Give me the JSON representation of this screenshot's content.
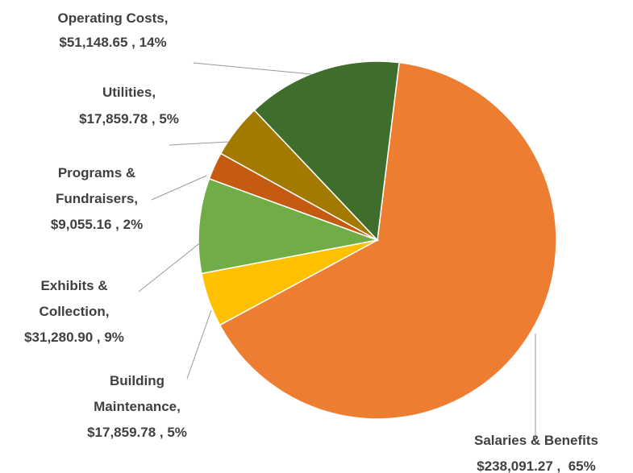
{
  "chart_data": {
    "type": "pie",
    "title": "",
    "legend": "none",
    "slices": [
      {
        "category": "Salaries & Benefits",
        "value": 238091.27,
        "percent": 65,
        "color": "#ed7d31",
        "label_lines": [
          "Salaries & Benefits",
          "$238,091.27 ,  65%"
        ]
      },
      {
        "category": "Building Maintenance",
        "value": 17859.78,
        "percent": 5,
        "color": "#ffc000",
        "label_lines": [
          "Building",
          "Maintenance,",
          "$17,859.78 , 5%"
        ]
      },
      {
        "category": "Exhibits & Collection",
        "value": 31280.9,
        "percent": 9,
        "color": "#70ad47",
        "label_lines": [
          "Exhibits &",
          "Collection,",
          "$31,280.90 , 9%"
        ]
      },
      {
        "category": "Programs & Fundraisers",
        "value": 9055.16,
        "percent": 2,
        "color": "#c55a11",
        "label_lines": [
          "Programs &",
          "Fundraisers,",
          "$9,055.16 , 2%"
        ]
      },
      {
        "category": "Utilities",
        "value": 17859.78,
        "percent": 5,
        "color": "#a27a00",
        "label_lines": [
          "Utilities,",
          "$17,859.78 , 5%"
        ]
      },
      {
        "category": "Operating Costs",
        "value": 51148.65,
        "percent": 14,
        "color": "#3f6d2c",
        "label_lines": [
          "Operating Costs,",
          "$51,148.65 , 14%"
        ]
      }
    ]
  }
}
